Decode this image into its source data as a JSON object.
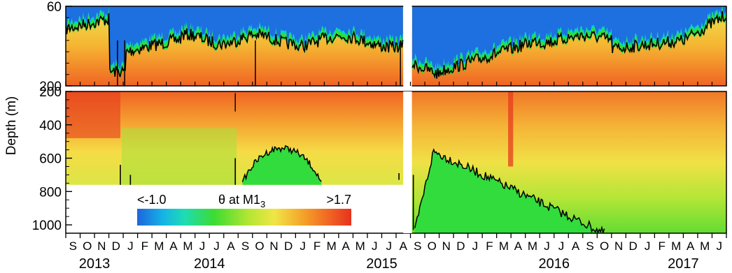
{
  "chart_data": {
    "type": "heatmap",
    "variable": "θ at M1",
    "variable_subscript": "3",
    "ylabel": "Depth (m)",
    "upper_panel": {
      "yticks": [
        60,
        200
      ],
      "ylim": [
        60,
        200
      ]
    },
    "lower_panel": {
      "yticks": [
        200,
        400,
        600,
        800,
        1000
      ],
      "ylim": [
        200,
        1050
      ]
    },
    "colorbar": {
      "min_label": "<-1.0",
      "max_label": ">1.7",
      "min": -1.0,
      "max": 1.7
    },
    "x_months": [
      "S",
      "O",
      "N",
      "D",
      "J",
      "F",
      "M",
      "A",
      "M",
      "J",
      "J",
      "A",
      "S",
      "O",
      "N",
      "D",
      "J",
      "F",
      "M",
      "A",
      "M",
      "J",
      "J",
      "A",
      "S",
      "O",
      "N",
      "D",
      "J",
      "F",
      "M",
      "A",
      "M",
      "J",
      "J",
      "A",
      "S",
      "O",
      "N",
      "D",
      "J",
      "F",
      "M",
      "A",
      "M",
      "J"
    ],
    "x_years": [
      {
        "label": "2013",
        "month_index": 1.5
      },
      {
        "label": "2014",
        "month_index": 9.5
      },
      {
        "label": "2015",
        "month_index": 21.5
      },
      {
        "label": "2016",
        "month_index": 33.5
      },
      {
        "label": "2017",
        "month_index": 42.5
      }
    ],
    "deployment_gap_month_index": [
      23.5,
      24.1
    ],
    "lower_panel_record_end_depth_m": 760,
    "colors": {
      "cold": "#1e6fe0",
      "cool": "#00d2d2",
      "mid": "#32dc3c",
      "warm_yellow": "#f0dc3c",
      "warm_orange": "#f57d23",
      "hot": "#e63c1e",
      "contour": "#000000"
    }
  }
}
